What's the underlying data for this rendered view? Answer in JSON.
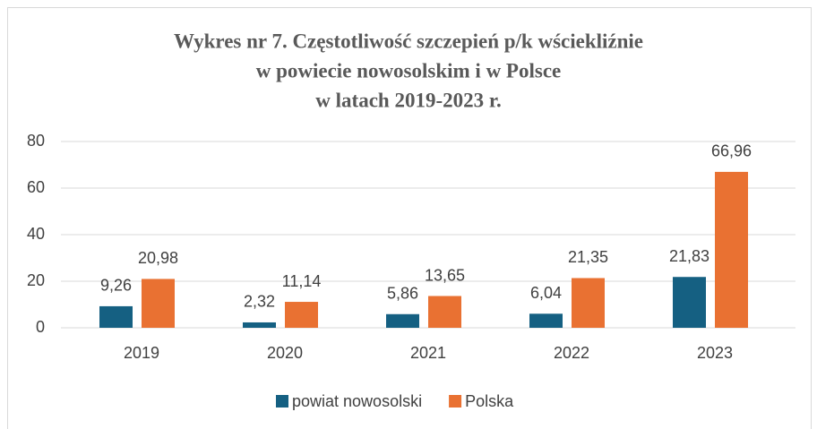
{
  "chart_data": {
    "type": "bar",
    "title": [
      "Wykres nr 7. Częstotliwość szczepień p/k wściekliźnie",
      "w powiecie nowosolskim i w Polsce",
      "w latach 2019-2023 r."
    ],
    "categories": [
      "2019",
      "2020",
      "2021",
      "2022",
      "2023"
    ],
    "series": [
      {
        "name": "powiat nowosolski",
        "color": "#156082",
        "values": [
          9.26,
          2.32,
          5.86,
          6.04,
          21.83
        ],
        "value_labels": [
          "9,26",
          "2,32",
          "5,86",
          "6,04",
          "21,83"
        ]
      },
      {
        "name": "Polska",
        "color": "#e97132",
        "values": [
          20.98,
          11.14,
          13.65,
          21.35,
          66.96
        ],
        "value_labels": [
          "20,98",
          "11,14",
          "13,65",
          "21,35",
          "66,96"
        ]
      }
    ],
    "ylim": [
      0,
      80
    ],
    "yticks": [
      0,
      20,
      40,
      60,
      80
    ],
    "grid": true,
    "legend": "bottom"
  }
}
